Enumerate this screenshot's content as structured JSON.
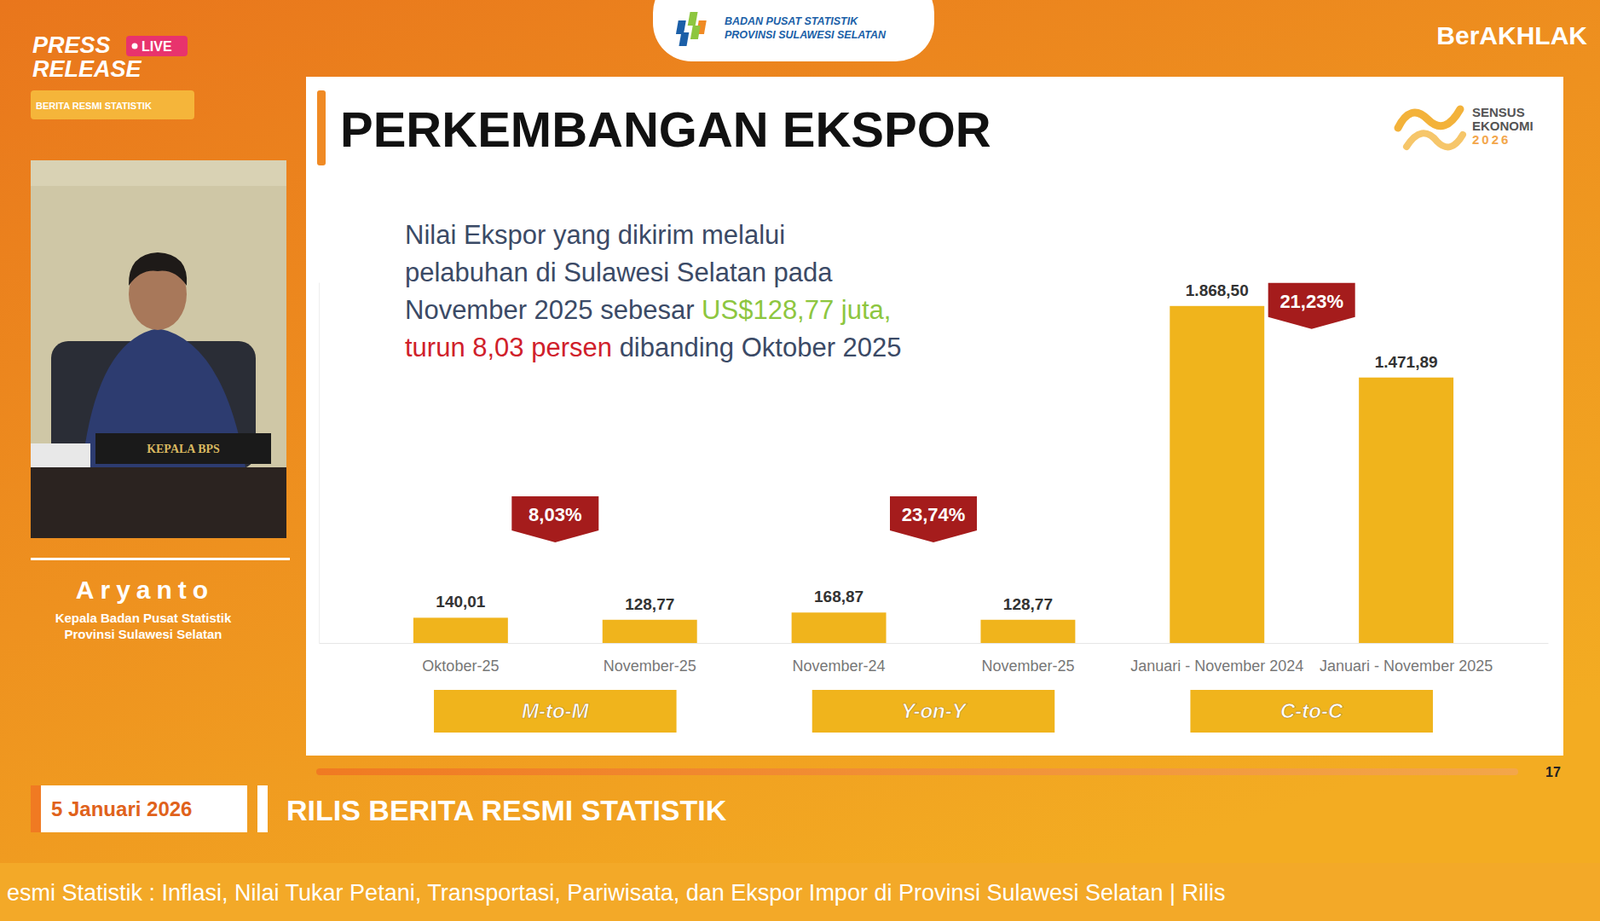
{
  "header": {
    "press_release": [
      "PRESS",
      "RELEASE"
    ],
    "live": "LIVE",
    "berita": "BERITA RESMI STATISTIK",
    "logo": [
      "BADAN PUSAT STATISTIK",
      "PROVINSI SULAWESI SELATAN"
    ],
    "brand": "BerAKHLAK"
  },
  "speaker": {
    "nameplate": "KEPALA BPS",
    "name": "Aryanto",
    "role": [
      "Kepala Badan Pusat Statistik",
      "Provinsi Sulawesi Selatan"
    ]
  },
  "slide": {
    "logo": [
      "SENSUS",
      "EKONOMI",
      "2026"
    ],
    "description": [
      [
        {
          "text": "Nilai Ekspor yang dikirim melalui",
          "color": "#3b4a66"
        }
      ],
      [
        {
          "text": "pelabuhan di Sulawesi Selatan pada",
          "color": "#3b4a66"
        }
      ],
      [
        {
          "text": "November 2025 sebesar ",
          "color": "#3b4a66"
        },
        {
          "text": "US$128,77 juta,",
          "color": "#8dc63f"
        }
      ],
      [
        {
          "text": "turun 8,03 persen",
          "color": "#d0202a"
        },
        {
          "text": " dibanding Oktober 2025",
          "color": "#3b4a66"
        }
      ]
    ],
    "page_number": "17"
  },
  "footer": {
    "date": "5 Januari 2026",
    "caption": "RILIS BERITA RESMI STATISTIK",
    "ticker": "esmi Statistik : Inflasi, Nilai Tukar Petani, Transportasi, Pariwisata, dan Ekspor Impor di Provinsi Sulawesi Selatan | Rilis"
  },
  "chart_data": {
    "type": "bar",
    "title": "PERKEMBANGAN EKSPOR",
    "categories": [
      "Oktober-25",
      "November-25",
      "November-24",
      "November-25",
      "Januari - November 2024",
      "Januari - November 2025"
    ],
    "values": [
      140.01,
      128.77,
      168.87,
      128.77,
      1868.5,
      1471.89
    ],
    "value_labels": [
      "140,01",
      "128,77",
      "168,87",
      "128,77",
      "1.868,50",
      "1.471,89"
    ],
    "color": "#f0b41c",
    "ylim": [
      0,
      2000
    ],
    "grid": false,
    "data_labels": true,
    "tick_labels": "x",
    "comparisons": [
      {
        "name": "M-to-M",
        "change": -8.03,
        "change_label": "8,03%"
      },
      {
        "name": "Y-on-Y",
        "change": -23.74,
        "change_label": "23,74%"
      },
      {
        "name": "C-to-C",
        "change": -21.23,
        "change_label": "21,23%"
      }
    ]
  }
}
